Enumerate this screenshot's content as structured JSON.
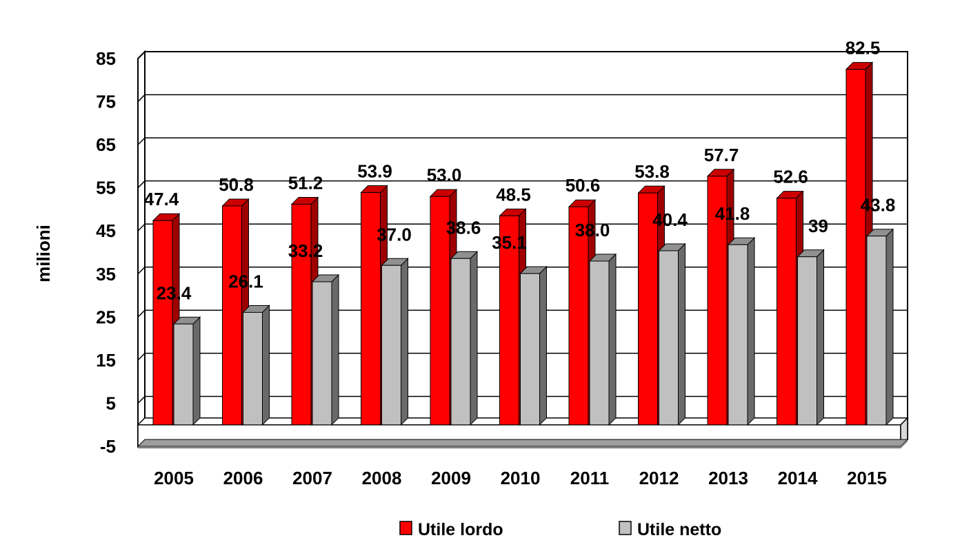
{
  "chart_data": {
    "type": "bar",
    "title": "",
    "xlabel": "",
    "ylabel": "milioni",
    "ylim": [
      -5,
      85
    ],
    "yticks": [
      85,
      75,
      65,
      55,
      45,
      35,
      25,
      15,
      5,
      -5
    ],
    "categories": [
      "2005",
      "2006",
      "2007",
      "2008",
      "2009",
      "2010",
      "2011",
      "2012",
      "2013",
      "2014",
      "2015"
    ],
    "series": [
      {
        "name": "Utile lordo",
        "color": "#ff0000",
        "values": [
          47.4,
          50.8,
          51.2,
          53.9,
          53.0,
          48.5,
          50.6,
          53.8,
          57.7,
          52.6,
          82.5
        ],
        "labels": [
          "47.4",
          "50.8",
          "51.2",
          "53.9",
          "53.0",
          "48.5",
          "50.6",
          "53.8",
          "57.7",
          "52.6",
          "82.5"
        ]
      },
      {
        "name": "Utile netto",
        "color": "#c0c0c0",
        "values": [
          23.4,
          26.1,
          33.2,
          37.0,
          38.6,
          35.1,
          38.0,
          40.4,
          41.8,
          39,
          43.8
        ],
        "labels": [
          "23.4",
          "26.1",
          "33.2",
          "37.0",
          "38.6",
          "35.1",
          "38.0",
          "40.4",
          "41.8",
          "39",
          "43.8"
        ]
      }
    ],
    "grid": true,
    "legend_position": "bottom"
  }
}
